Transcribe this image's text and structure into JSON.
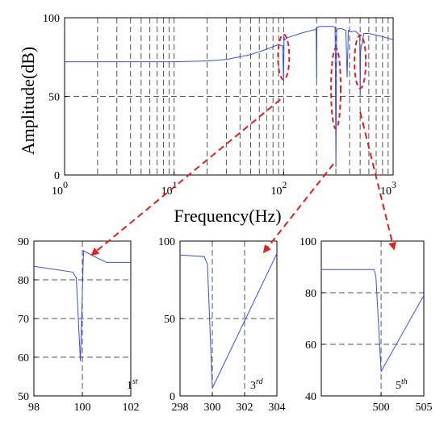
{
  "chart_data": [
    {
      "id": "main",
      "type": "line",
      "xscale": "log",
      "xlim": [
        1,
        1000
      ],
      "ylim": [
        0,
        100
      ],
      "xticks": [
        1,
        10,
        100,
        1000
      ],
      "yticks": [
        0,
        50,
        100
      ],
      "xtick_labels": [
        {
          "base": "10",
          "exp": "0"
        },
        {
          "base": "10",
          "exp": "1"
        },
        {
          "base": "10",
          "exp": "2"
        },
        {
          "base": "10",
          "exp": "3"
        }
      ],
      "ytick_labels": [
        "0",
        "50",
        "100"
      ],
      "xlabel": "Frequency(Hz)",
      "ylabel": "Amplitude(dB)",
      "grid": true,
      "series": [
        {
          "x": [
            1,
            3,
            10,
            20,
            30,
            50,
            70,
            90,
            98,
            100,
            101,
            102,
            110,
            150,
            195,
            198,
            200,
            201,
            203,
            220,
            280,
            295,
            300,
            302,
            305,
            310,
            340,
            370,
            380,
            390,
            410,
            450,
            495,
            500,
            502,
            505,
            540,
            600,
            800,
            1000
          ],
          "y": [
            72,
            72,
            72,
            72.5,
            73.5,
            76.5,
            80,
            83,
            82,
            60,
            88,
            86,
            87.5,
            90.5,
            92.5,
            93,
            60,
            93,
            94,
            94.5,
            94.5,
            94,
            5,
            40,
            92,
            93,
            93,
            92,
            62,
            92,
            91,
            91.5,
            89,
            50,
            65,
            79,
            90,
            90,
            88,
            86
          ]
        }
      ]
    },
    {
      "id": "zoom-1st",
      "type": "line",
      "xlim": [
        98,
        102
      ],
      "ylim": [
        50,
        90
      ],
      "xticks": [
        98,
        100,
        102
      ],
      "yticks": [
        50,
        60,
        70,
        80,
        90
      ],
      "xtick_labels": [
        "98",
        "100",
        "102"
      ],
      "ytick_labels": [
        "50",
        "60",
        "70",
        "80",
        "90"
      ],
      "grid": true,
      "series": [
        {
          "x": [
            98,
            99.6,
            99.75,
            99.92,
            100.05,
            100.5,
            101,
            101.3,
            102
          ],
          "y": [
            83.5,
            82,
            80.5,
            59,
            87.5,
            86,
            84.5,
            84.5,
            84.5
          ]
        }
      ]
    },
    {
      "id": "zoom-3rd",
      "type": "line",
      "xlim": [
        298,
        304
      ],
      "ylim": [
        0,
        100
      ],
      "xticks": [
        298,
        300,
        302,
        304
      ],
      "yticks": [
        0,
        50,
        100
      ],
      "xtick_labels": [
        "298",
        "300",
        "302",
        "304"
      ],
      "ytick_labels": [
        "0",
        "50",
        "100"
      ],
      "grid": true,
      "series": [
        {
          "x": [
            298,
            299.5,
            299.7,
            300,
            304
          ],
          "y": [
            91,
            90,
            85,
            5,
            92
          ]
        }
      ]
    },
    {
      "id": "zoom-5th",
      "type": "line",
      "xlim": [
        493,
        505
      ],
      "ylim": [
        40,
        100
      ],
      "xticks": [
        500,
        505
      ],
      "yticks": [
        40,
        60,
        80,
        100
      ],
      "xtick_labels": [
        "500",
        "505"
      ],
      "ytick_labels": [
        "40",
        "60",
        "80",
        "100"
      ],
      "grid": true,
      "series": [
        {
          "x": [
            493,
            499.2,
            499.4,
            500,
            505
          ],
          "y": [
            89,
            89,
            86,
            49.5,
            79
          ]
        }
      ]
    }
  ],
  "annotations": {
    "zoom_1st": {
      "base": "1",
      "sup": "st"
    },
    "zoom_3rd": {
      "base": "3",
      "sup": "rd"
    },
    "zoom_5th": {
      "base": "5",
      "sup": "th"
    }
  },
  "colors": {
    "line": "#3a4ee0",
    "arrow": "#e02020",
    "grid": "#555555",
    "axis": "#000000"
  }
}
